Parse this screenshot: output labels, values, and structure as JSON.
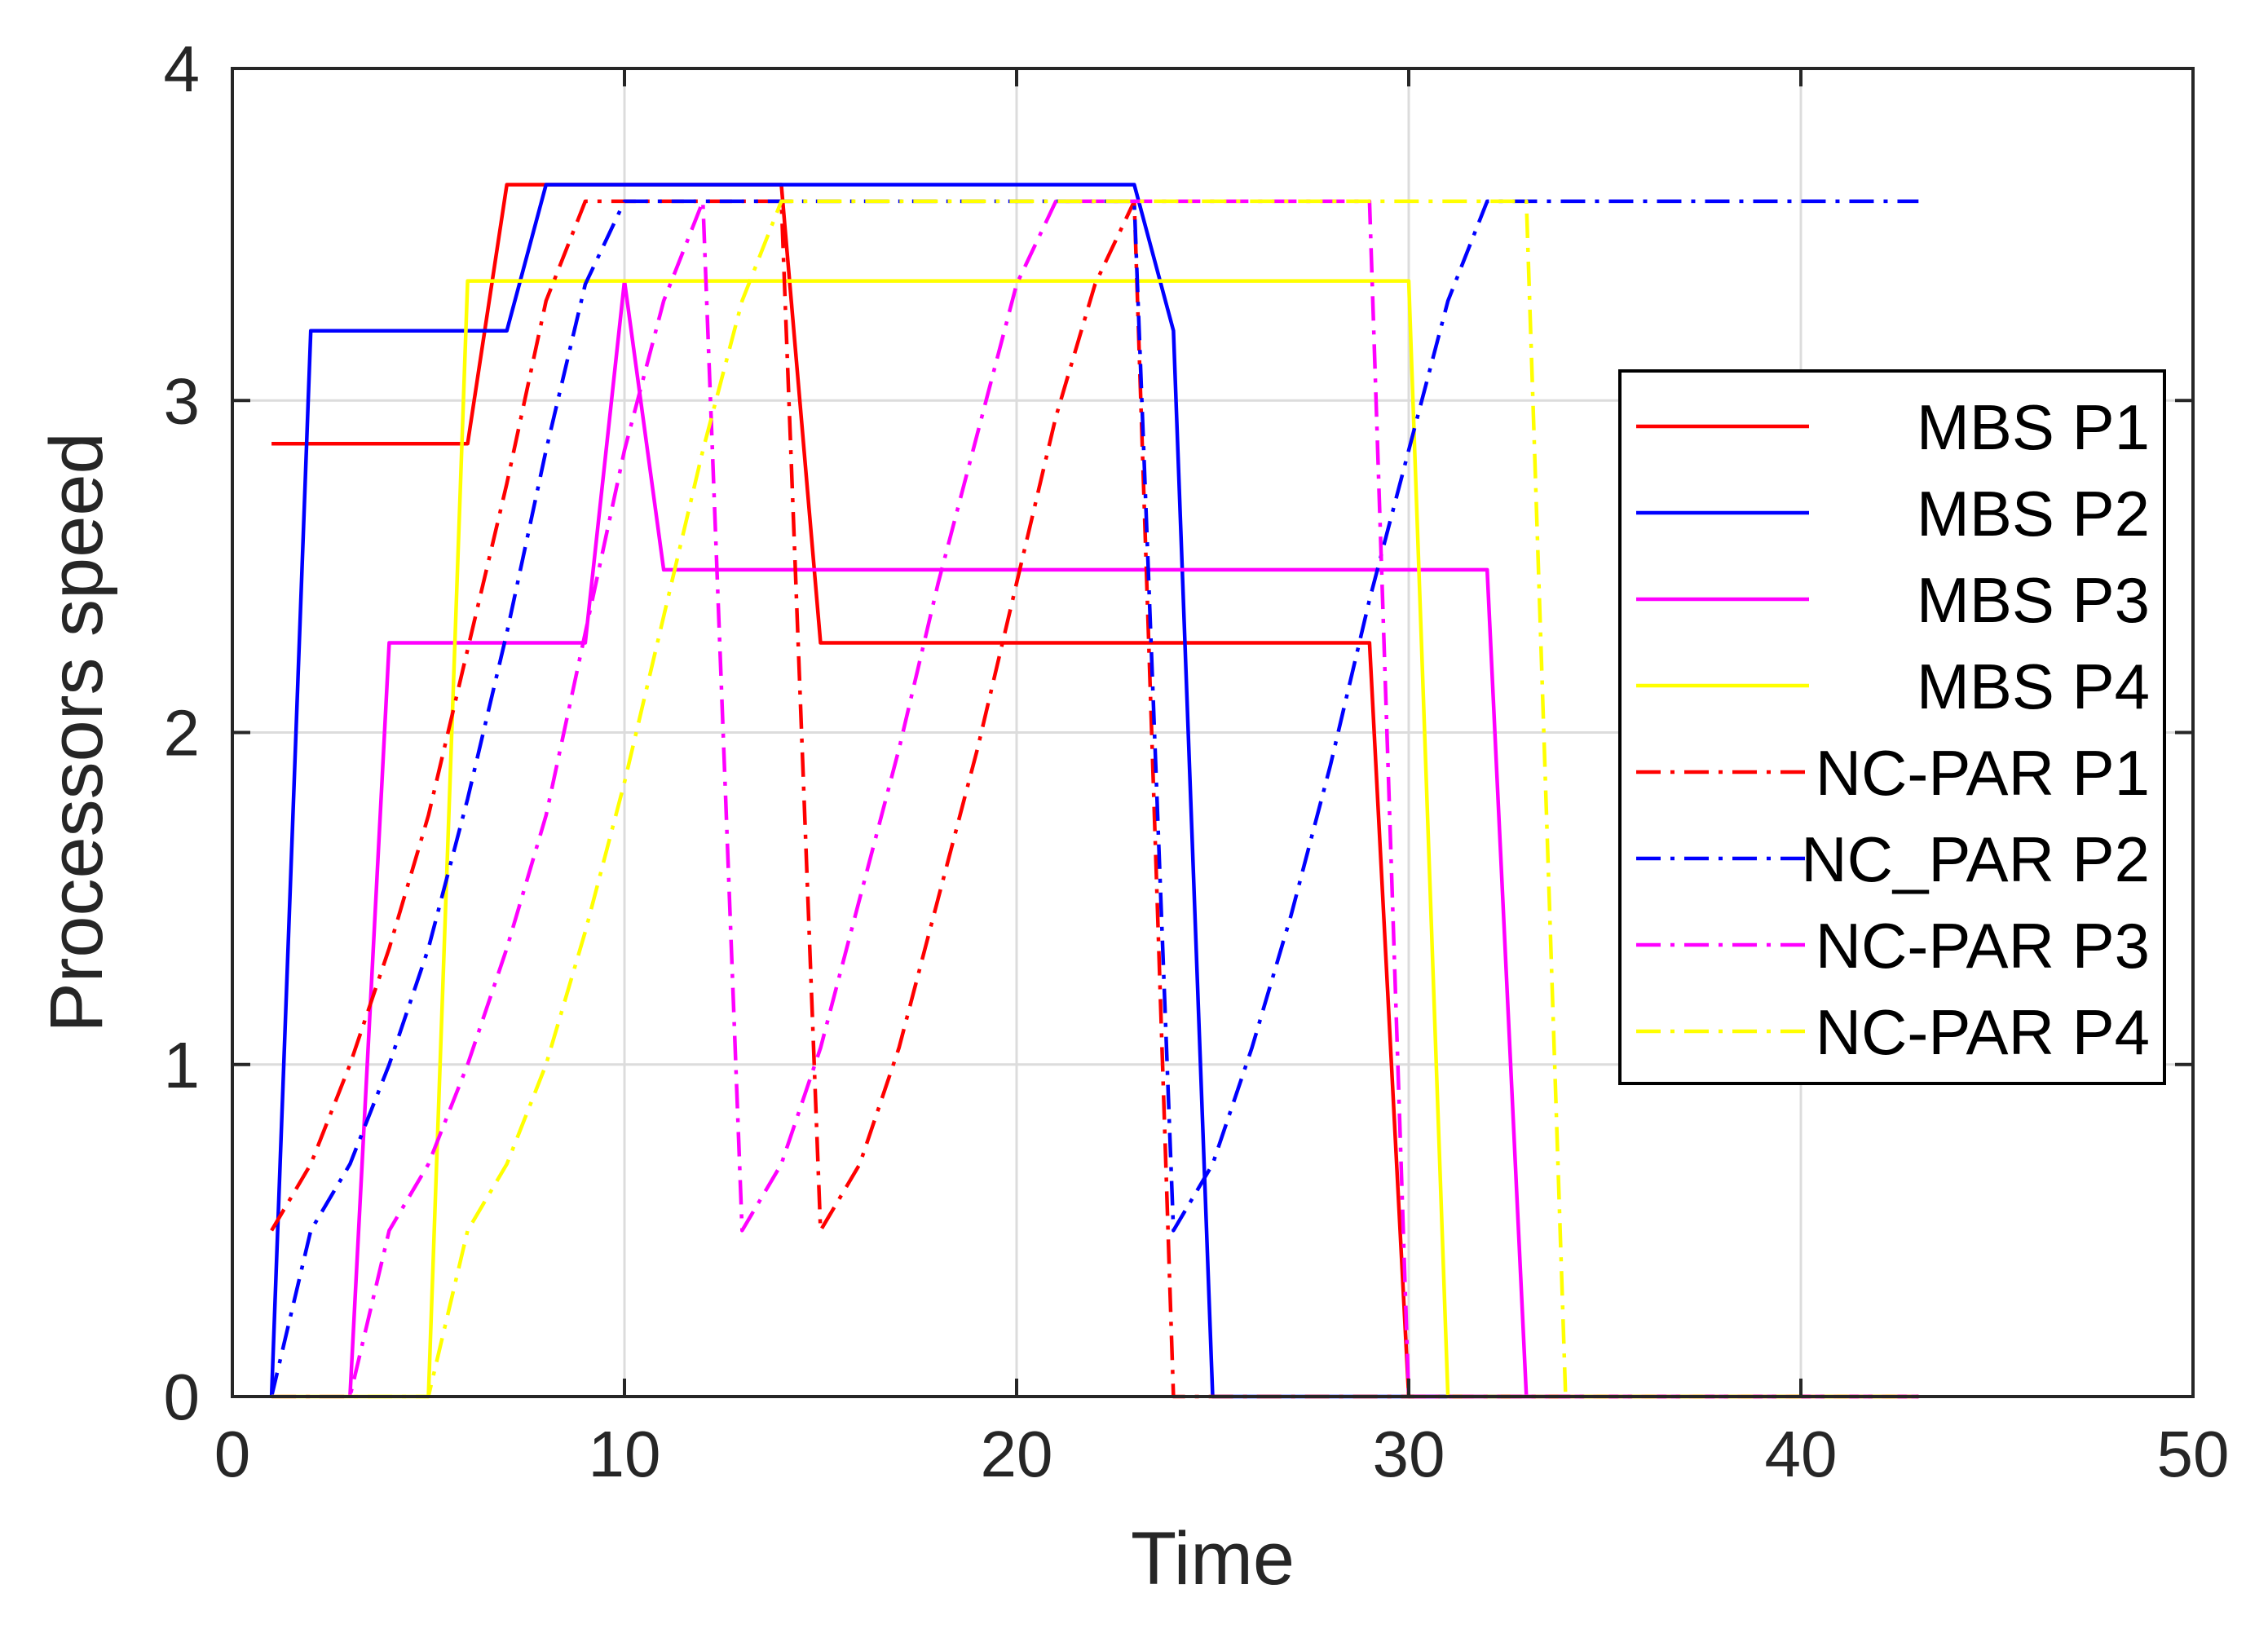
{
  "chart_data": {
    "type": "line",
    "title": "",
    "xlabel": "Time",
    "ylabel": "Processors speed",
    "xlim": [
      0,
      50
    ],
    "ylim": [
      0,
      4
    ],
    "xticks": [
      0,
      10,
      20,
      30,
      40,
      50
    ],
    "yticks": [
      0,
      1,
      2,
      3,
      4
    ],
    "xtick_labels": [
      "0",
      "10",
      "20",
      "30",
      "40",
      "50"
    ],
    "ytick_labels": [
      "0",
      "1",
      "2",
      "3",
      "4"
    ],
    "grid": true,
    "legend_position": "right",
    "series": [
      {
        "name": "MBS P1",
        "color": "#ff0000",
        "style": "solid",
        "points": [
          [
            1,
            2.87
          ],
          [
            6,
            2.87
          ],
          [
            7,
            3.65
          ],
          [
            14,
            3.65
          ],
          [
            15,
            2.27
          ],
          [
            29,
            2.27
          ],
          [
            30,
            0
          ],
          [
            43,
            0
          ]
        ]
      },
      {
        "name": "MBS P2",
        "color": "#0000ff",
        "style": "solid",
        "points": [
          [
            1,
            0
          ],
          [
            2,
            3.21
          ],
          [
            7,
            3.21
          ],
          [
            8,
            3.65
          ],
          [
            23,
            3.65
          ],
          [
            24,
            3.21
          ],
          [
            25,
            0
          ],
          [
            43,
            0
          ]
        ]
      },
      {
        "name": "MBS P3",
        "color": "#ff00ff",
        "style": "solid",
        "points": [
          [
            3,
            0
          ],
          [
            4,
            2.27
          ],
          [
            9,
            2.27
          ],
          [
            10,
            3.36
          ],
          [
            11,
            2.49
          ],
          [
            32,
            2.49
          ],
          [
            33,
            0
          ],
          [
            43,
            0
          ]
        ]
      },
      {
        "name": "MBS P4",
        "color": "#ffff00",
        "style": "solid",
        "points": [
          [
            1,
            0
          ],
          [
            5,
            0
          ],
          [
            6,
            3.36
          ],
          [
            30,
            3.36
          ],
          [
            31,
            0
          ],
          [
            43,
            0
          ]
        ]
      },
      {
        "name": "NC-PAR P1",
        "color": "#ff0000",
        "style": "dashdot",
        "points": [
          [
            1,
            0.5
          ],
          [
            2,
            0.7
          ],
          [
            3,
            1.0
          ],
          [
            4,
            1.35
          ],
          [
            5,
            1.75
          ],
          [
            6,
            2.25
          ],
          [
            7,
            2.75
          ],
          [
            8,
            3.3
          ],
          [
            9,
            3.6
          ],
          [
            14,
            3.6
          ],
          [
            15,
            0.5
          ],
          [
            16,
            0.7
          ],
          [
            17,
            1.05
          ],
          [
            18,
            1.5
          ],
          [
            19,
            1.95
          ],
          [
            20,
            2.45
          ],
          [
            21,
            2.95
          ],
          [
            22,
            3.35
          ],
          [
            23,
            3.6
          ],
          [
            24,
            0
          ],
          [
            43,
            0
          ]
        ]
      },
      {
        "name": "NC_PAR P2",
        "color": "#0000ff",
        "style": "dashdot",
        "points": [
          [
            1,
            0
          ],
          [
            2,
            0.5
          ],
          [
            3,
            0.7
          ],
          [
            4,
            1.0
          ],
          [
            5,
            1.35
          ],
          [
            6,
            1.8
          ],
          [
            7,
            2.3
          ],
          [
            8,
            2.85
          ],
          [
            9,
            3.35
          ],
          [
            10,
            3.6
          ],
          [
            23,
            3.6
          ],
          [
            24,
            0.5
          ],
          [
            25,
            0.7
          ],
          [
            26,
            1.05
          ],
          [
            27,
            1.45
          ],
          [
            28,
            1.9
          ],
          [
            29,
            2.4
          ],
          [
            30,
            2.85
          ],
          [
            31,
            3.3
          ],
          [
            32,
            3.6
          ],
          [
            43,
            3.6
          ]
        ]
      },
      {
        "name": "NC-PAR P3",
        "color": "#ff00ff",
        "style": "dashdot",
        "points": [
          [
            1,
            0
          ],
          [
            3,
            0
          ],
          [
            4,
            0.5
          ],
          [
            5,
            0.7
          ],
          [
            6,
            1.0
          ],
          [
            7,
            1.35
          ],
          [
            8,
            1.75
          ],
          [
            9,
            2.3
          ],
          [
            10,
            2.85
          ],
          [
            11,
            3.3
          ],
          [
            12,
            3.6
          ],
          [
            13,
            0.5
          ],
          [
            14,
            0.7
          ],
          [
            15,
            1.05
          ],
          [
            16,
            1.5
          ],
          [
            17,
            1.95
          ],
          [
            18,
            2.45
          ],
          [
            19,
            2.9
          ],
          [
            20,
            3.35
          ],
          [
            21,
            3.6
          ],
          [
            29,
            3.6
          ],
          [
            30,
            0
          ],
          [
            43,
            0
          ]
        ]
      },
      {
        "name": "NC-PAR P4",
        "color": "#ffff00",
        "style": "dashdot",
        "points": [
          [
            1,
            0
          ],
          [
            5,
            0
          ],
          [
            6,
            0.5
          ],
          [
            7,
            0.7
          ],
          [
            8,
            1.0
          ],
          [
            9,
            1.4
          ],
          [
            10,
            1.85
          ],
          [
            11,
            2.35
          ],
          [
            12,
            2.85
          ],
          [
            13,
            3.3
          ],
          [
            14,
            3.6
          ],
          [
            33,
            3.6
          ],
          [
            34,
            0
          ],
          [
            43,
            0
          ]
        ]
      }
    ]
  }
}
